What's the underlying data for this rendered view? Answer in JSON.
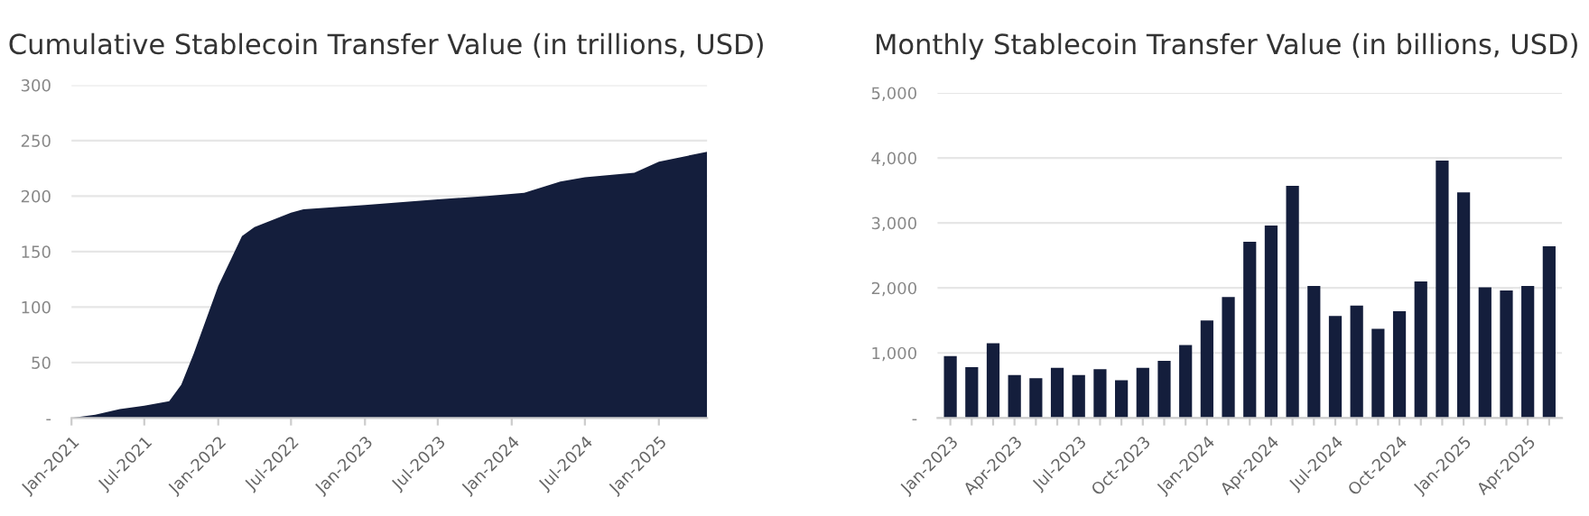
{
  "chart_data": [
    {
      "type": "area",
      "title": "Cumulative Stablecoin Transfer Value (in trillions, USD)",
      "x": [
        "2021-01",
        "2021-03",
        "2021-05",
        "2021-07",
        "2021-09",
        "2021-10",
        "2021-11",
        "2022-01",
        "2022-03",
        "2022-04",
        "2022-07",
        "2022-08",
        "2023-01",
        "2023-07",
        "2023-11",
        "2024-02",
        "2024-05",
        "2024-07",
        "2024-11",
        "2025-01",
        "2025-05"
      ],
      "values": [
        0,
        3,
        8,
        11,
        15,
        30,
        58,
        119,
        164,
        172,
        185,
        188,
        192,
        197,
        200,
        203,
        213,
        217,
        221,
        231,
        240
      ],
      "color": "#141e3c",
      "xlim": [
        "2021-01",
        "2025-05"
      ],
      "xticks": [
        {
          "value": "2021-01",
          "label": "Jan-2021"
        },
        {
          "value": "2021-07",
          "label": "Jul-2021"
        },
        {
          "value": "2022-01",
          "label": "Jan-2022"
        },
        {
          "value": "2022-07",
          "label": "Jul-2022"
        },
        {
          "value": "2023-01",
          "label": "Jan-2023"
        },
        {
          "value": "2023-07",
          "label": "Jul-2023"
        },
        {
          "value": "2024-01",
          "label": "Jan-2024"
        },
        {
          "value": "2024-07",
          "label": "Jul-2024"
        },
        {
          "value": "2025-01",
          "label": "Jan-2025"
        }
      ],
      "ylim": [
        0,
        300
      ],
      "yticks": [
        {
          "value": 0,
          "label": "-"
        },
        50,
        100,
        150,
        200,
        250,
        300
      ],
      "grid": "y"
    },
    {
      "type": "bar",
      "title": "Monthly Stablecoin Transfer Value (in billions, USD)",
      "categories": [
        "Jan-2023",
        null,
        null,
        "Apr-2023",
        null,
        null,
        "Jul-2023",
        null,
        null,
        "Oct-2023",
        null,
        null,
        "Jan-2024",
        null,
        null,
        "Apr-2024",
        null,
        null,
        "Jul-2024",
        null,
        null,
        "Oct-2024",
        null,
        null,
        "Jan-2025",
        null,
        null,
        "Apr-2025",
        null
      ],
      "values": [
        950,
        780,
        1150,
        660,
        610,
        770,
        660,
        750,
        580,
        770,
        880,
        1120,
        1500,
        1860,
        2710,
        2960,
        3570,
        2030,
        1570,
        1730,
        1370,
        1640,
        2100,
        3960,
        3470,
        2010,
        1960,
        2030,
        2640
      ],
      "color": "#141e3c",
      "ylim": [
        0,
        5000
      ],
      "yticks": [
        {
          "value": 0,
          "label": "-"
        },
        {
          "value": 1000,
          "label": "1,000"
        },
        {
          "value": 2000,
          "label": "2,000"
        },
        {
          "value": 3000,
          "label": "3,000"
        },
        {
          "value": 4000,
          "label": "4,000"
        },
        {
          "value": 5000,
          "label": "5,000"
        }
      ],
      "grid": "y"
    }
  ]
}
